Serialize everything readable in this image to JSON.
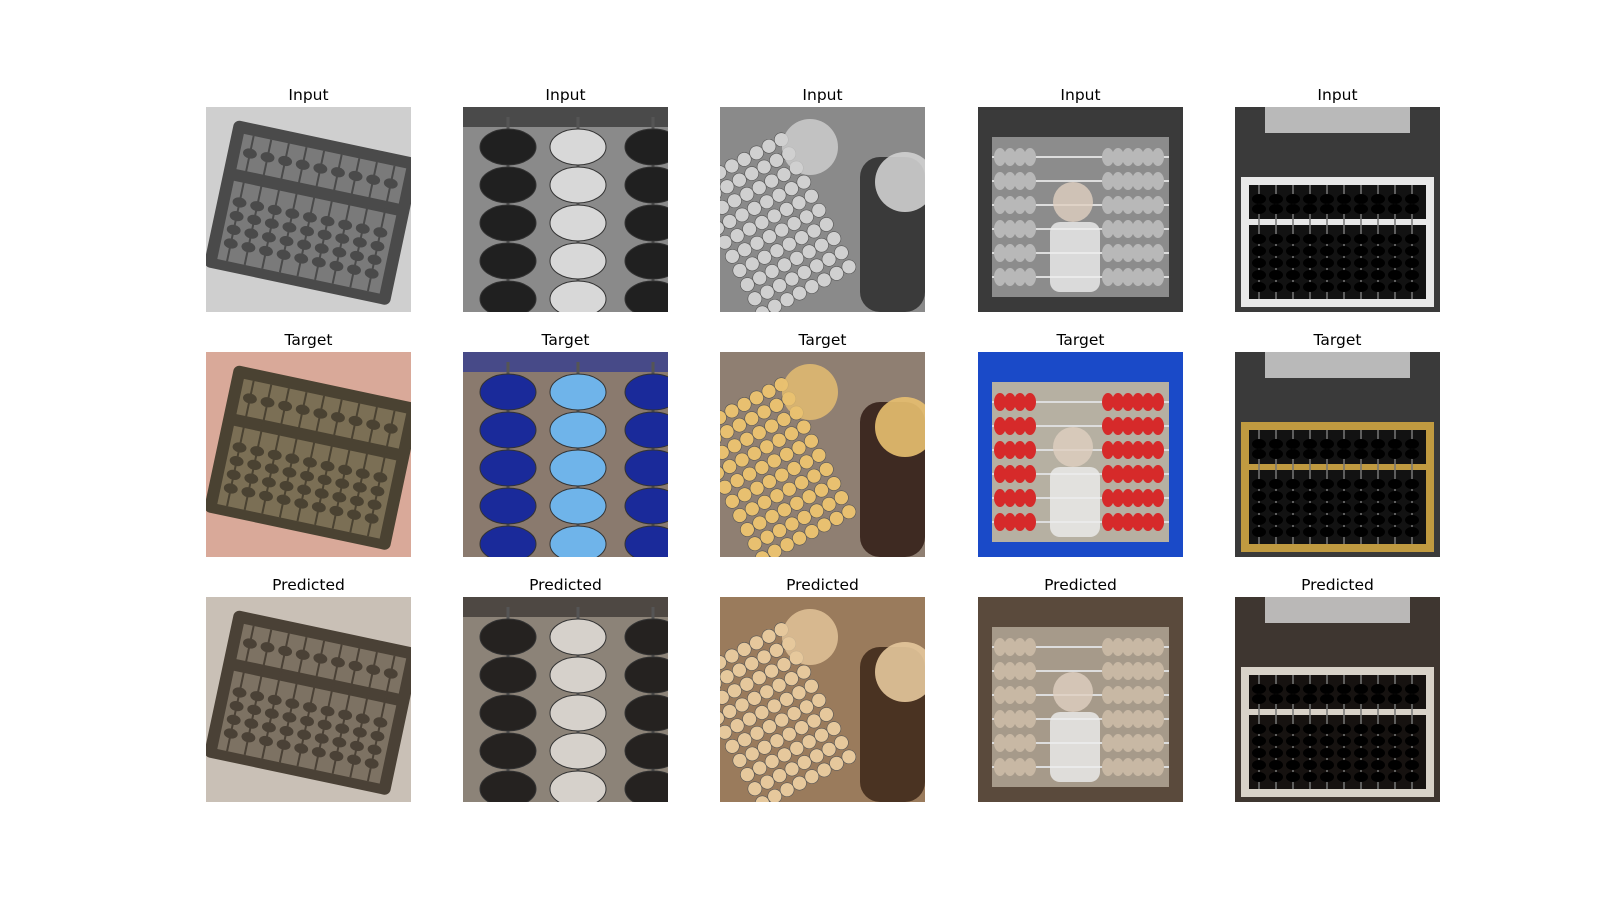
{
  "row_titles": [
    "Input",
    "Target",
    "Predicted"
  ],
  "columns": [
    {
      "subject": "wooden-abacus-held-in-hand",
      "colors": {
        "input": [
          "#cfcfcf",
          "#4a4a4a",
          "#7a7a7a"
        ],
        "target": [
          "#d9a999",
          "#4a4232",
          "#7b6f55"
        ],
        "predicted": [
          "#c9c0b6",
          "#4a4136",
          "#7d7263"
        ]
      }
    },
    {
      "subject": "large-bead-column-outdoor",
      "colors": {
        "input": [
          "#8a8a8a",
          "#202020",
          "#d8d8d8"
        ],
        "target": [
          "#8a7a6e",
          "#1a2a9a",
          "#6fb4ea"
        ],
        "predicted": [
          "#8c8378",
          "#252220",
          "#d6d1cb"
        ]
      }
    },
    {
      "subject": "toddler-with-counting-frame",
      "colors": {
        "input": [
          "#8a8a8a",
          "#d0d0d0",
          "#3a3a3a"
        ],
        "target": [
          "#8f7f72",
          "#e8c070",
          "#3e2a22"
        ],
        "predicted": [
          "#9a7b5c",
          "#e6c89c",
          "#4a3322"
        ]
      }
    },
    {
      "subject": "child-behind-toy-abacus",
      "colors": {
        "input": [
          "#8c8c8c",
          "#b8b8b8",
          "#3a3a3a"
        ],
        "target": [
          "#b6b0a2",
          "#d62a2a",
          "#1a4ac8"
        ],
        "predicted": [
          "#a69a8a",
          "#c8b8a4",
          "#5a4a3c"
        ]
      }
    },
    {
      "subject": "black-bead-abacus-frame",
      "colors": {
        "input": [
          "#3a3a3a",
          "#e8e8e8",
          "#121212"
        ],
        "target": [
          "#3a3a3a",
          "#c09a40",
          "#121212"
        ],
        "predicted": [
          "#3e3630",
          "#d8d2c8",
          "#161210"
        ]
      }
    }
  ]
}
